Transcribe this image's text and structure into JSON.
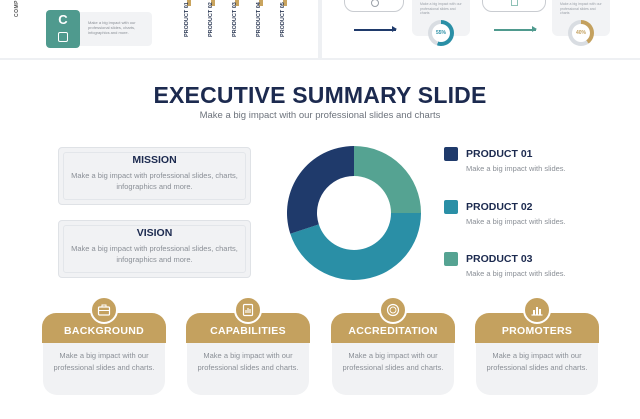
{
  "top_left": {
    "vertical_label": "COMP",
    "block_letter": "C",
    "card_text": "Make a big impact with our professional slides, charts, infographics and more.",
    "product_columns": [
      "PRODUCT 01",
      "PRODUCT 02",
      "PRODUCT 03",
      "PRODUCT 04",
      "PRODUCT 05"
    ]
  },
  "top_right": {
    "card_text_1": "Make a big impact with our professional slides and charts",
    "card_text_2": "Make a big impact with our professional slides and charts",
    "percent_1": "55%",
    "percent_2": "40%",
    "colors": {
      "navy": "#1f3a6b",
      "teal": "#4f9a8e",
      "blue": "#2a8fa6",
      "gold": "#c4a15f"
    }
  },
  "slide": {
    "title": "EXECUTIVE SUMMARY SLIDE",
    "subtitle": "Make a big impact with our professional slides and charts",
    "mission": {
      "title": "MISSION",
      "text": "Make a big impact with professional slides, charts, infographics and more."
    },
    "vision": {
      "title": "VISION",
      "text": "Make a big impact with professional slides, charts, infographics and more."
    },
    "legend": [
      {
        "title": "PRODUCT 01",
        "text": "Make a big impact with slides.",
        "color": "#1f3a6b"
      },
      {
        "title": "PRODUCT 02",
        "text": "Make a big impact with slides.",
        "color": "#2a8fa6"
      },
      {
        "title": "PRODUCT 03",
        "text": "Make a big impact with slides.",
        "color": "#55a392"
      }
    ],
    "cards": [
      {
        "label": "BACKGROUND",
        "text": "Make a big impact with our professional slides and charts.",
        "icon": "briefcase-icon"
      },
      {
        "label": "CAPABILITIES",
        "text": "Make a big impact with our professional slides and charts.",
        "icon": "document-chart-icon"
      },
      {
        "label": "ACCREDITATION",
        "text": "Make a big impact with our professional slides and charts.",
        "icon": "coin-icon"
      },
      {
        "label": "PROMOTERS",
        "text": "Make a big impact with our professional slides and charts.",
        "icon": "bar-chart-icon"
      }
    ]
  },
  "chart_data": {
    "type": "pie",
    "categories": [
      "PRODUCT 01",
      "PRODUCT 02",
      "PRODUCT 03"
    ],
    "values": [
      30,
      45,
      25
    ],
    "colors": [
      "#1f3a6b",
      "#2a8fa6",
      "#55a392"
    ],
    "donut": true,
    "title": "",
    "legend": "right"
  }
}
